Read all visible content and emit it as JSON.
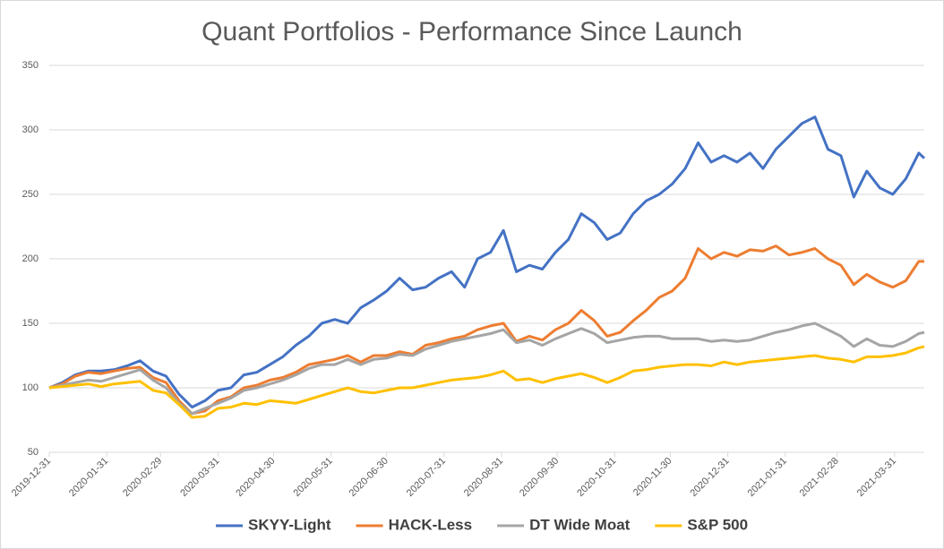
{
  "chart_data": {
    "type": "line",
    "title": "Quant Portfolios - Performance Since Launch",
    "x": [
      "2019-12-31",
      "2020-01-07",
      "2020-01-14",
      "2020-01-21",
      "2020-01-28",
      "2020-02-04",
      "2020-02-11",
      "2020-02-18",
      "2020-02-25",
      "2020-03-03",
      "2020-03-10",
      "2020-03-17",
      "2020-03-24",
      "2020-03-31",
      "2020-04-07",
      "2020-04-14",
      "2020-04-21",
      "2020-04-28",
      "2020-05-05",
      "2020-05-12",
      "2020-05-19",
      "2020-05-26",
      "2020-06-02",
      "2020-06-09",
      "2020-06-16",
      "2020-06-23",
      "2020-06-30",
      "2020-07-07",
      "2020-07-14",
      "2020-07-21",
      "2020-07-28",
      "2020-08-04",
      "2020-08-11",
      "2020-08-18",
      "2020-08-25",
      "2020-09-01",
      "2020-09-08",
      "2020-09-15",
      "2020-09-22",
      "2020-09-29",
      "2020-10-06",
      "2020-10-13",
      "2020-10-20",
      "2020-10-27",
      "2020-11-03",
      "2020-11-10",
      "2020-11-17",
      "2020-11-24",
      "2020-12-01",
      "2020-12-08",
      "2020-12-15",
      "2020-12-22",
      "2020-12-29",
      "2021-01-05",
      "2021-01-12",
      "2021-01-19",
      "2021-01-26",
      "2021-02-02",
      "2021-02-09",
      "2021-02-16",
      "2021-02-23",
      "2021-03-02",
      "2021-03-09",
      "2021-03-16",
      "2021-03-23",
      "2021-03-30",
      "2021-04-06",
      "2021-04-13",
      "2021-04-16"
    ],
    "series": [
      {
        "name": "SKYY-Light",
        "color": "#4472c4",
        "values": [
          100,
          104,
          110,
          113,
          113,
          114,
          117,
          121,
          113,
          109,
          95,
          85,
          90,
          98,
          100,
          110,
          112,
          118,
          124,
          133,
          140,
          150,
          153,
          150,
          162,
          168,
          175,
          185,
          176,
          178,
          185,
          190,
          178,
          200,
          205,
          222,
          190,
          195,
          192,
          205,
          215,
          235,
          228,
          215,
          220,
          235,
          245,
          250,
          258,
          270,
          290,
          275,
          280,
          275,
          282,
          270,
          285,
          295,
          305,
          310,
          285,
          280,
          248,
          268,
          255,
          250,
          262,
          282,
          278
        ]
      },
      {
        "name": "HACK-Less",
        "color": "#ed7d31",
        "values": [
          100,
          103,
          109,
          112,
          111,
          113,
          115,
          116,
          108,
          104,
          90,
          80,
          82,
          90,
          93,
          100,
          102,
          106,
          108,
          112,
          118,
          120,
          122,
          125,
          120,
          125,
          125,
          128,
          126,
          133,
          135,
          138,
          140,
          145,
          148,
          150,
          136,
          140,
          137,
          145,
          150,
          160,
          152,
          140,
          143,
          152,
          160,
          170,
          175,
          185,
          208,
          200,
          205,
          202,
          207,
          206,
          210,
          203,
          205,
          208,
          200,
          195,
          180,
          188,
          182,
          178,
          183,
          198,
          198
        ]
      },
      {
        "name": "DT Wide Moat",
        "color": "#a5a5a5",
        "values": [
          100,
          102,
          104,
          106,
          105,
          108,
          111,
          114,
          106,
          100,
          88,
          80,
          84,
          88,
          92,
          98,
          100,
          103,
          106,
          110,
          115,
          118,
          118,
          122,
          118,
          122,
          123,
          126,
          125,
          130,
          133,
          136,
          138,
          140,
          142,
          145,
          135,
          137,
          133,
          138,
          142,
          146,
          142,
          135,
          137,
          139,
          140,
          140,
          138,
          138,
          138,
          136,
          137,
          136,
          137,
          140,
          143,
          145,
          148,
          150,
          145,
          140,
          132,
          138,
          133,
          132,
          136,
          142,
          143
        ]
      },
      {
        "name": "S&P 500",
        "color": "#ffc000",
        "values": [
          100,
          101,
          102,
          103,
          101,
          103,
          104,
          105,
          98,
          96,
          87,
          77,
          78,
          84,
          85,
          88,
          87,
          90,
          89,
          88,
          91,
          94,
          97,
          100,
          97,
          96,
          98,
          100,
          100,
          102,
          104,
          106,
          107,
          108,
          110,
          113,
          106,
          107,
          104,
          107,
          109,
          111,
          108,
          104,
          108,
          113,
          114,
          116,
          117,
          118,
          118,
          117,
          120,
          118,
          120,
          121,
          122,
          123,
          124,
          125,
          123,
          122,
          120,
          124,
          124,
          125,
          127,
          131,
          132
        ]
      }
    ],
    "xlim": [
      "2019-12-31",
      "2021-04-16"
    ],
    "xticks": [
      "2019-12-31",
      "2020-01-31",
      "2020-02-29",
      "2020-03-31",
      "2020-04-30",
      "2020-05-31",
      "2020-06-30",
      "2020-07-31",
      "2020-08-31",
      "2020-09-30",
      "2020-10-31",
      "2020-11-30",
      "2020-12-31",
      "2021-01-31",
      "2021-02-28",
      "2021-03-31"
    ],
    "ylim": [
      50,
      350
    ],
    "yticks": [
      50,
      100,
      150,
      200,
      250,
      300,
      350
    ],
    "grid": true,
    "legend": "bottom"
  }
}
